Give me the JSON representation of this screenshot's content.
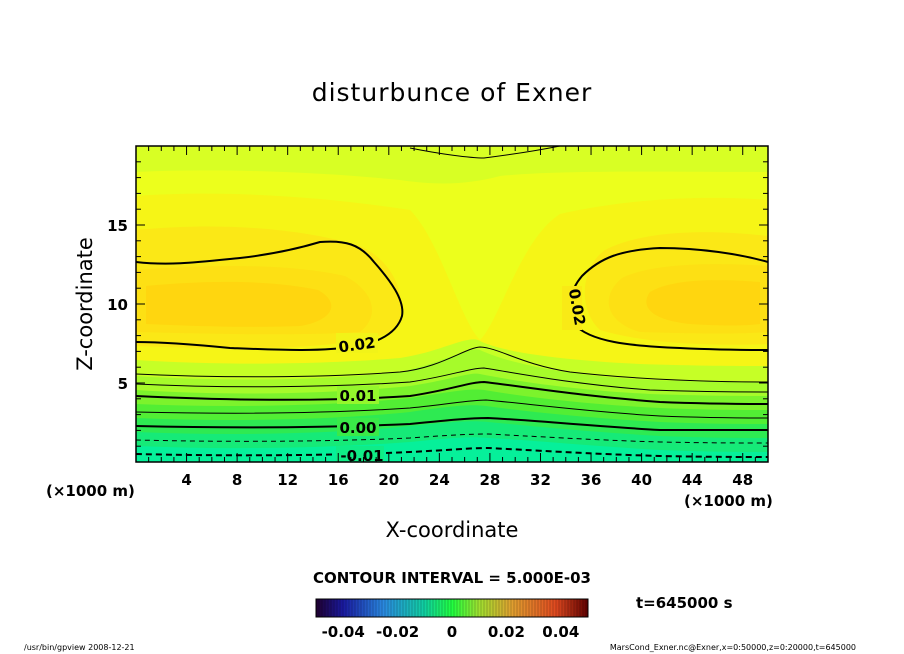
{
  "chart_data": {
    "type": "heatmap",
    "title": "disturbunce of Exner",
    "xlabel": "X-coordinate",
    "ylabel": "Z-coordinate",
    "x_unit": "(×1000 m)",
    "y_unit": "(×1000 m)",
    "xlim": [
      0,
      50
    ],
    "ylim": [
      0,
      20
    ],
    "x_ticks": [
      "4",
      "8",
      "12",
      "16",
      "20",
      "24",
      "28",
      "32",
      "36",
      "40",
      "44",
      "48"
    ],
    "y_ticks": [
      "5",
      "10",
      "15"
    ],
    "contour_interval_text": "CONTOUR INTERVAL = 5.000E-03",
    "contour_labels": [
      "0.02",
      "0.01",
      "0.00",
      "-0.01",
      "0.02"
    ],
    "colorbar": {
      "range": [
        -0.05,
        0.05
      ],
      "tick_labels": [
        "-0.04",
        "-0.02",
        "0",
        "0.02",
        "0.04"
      ]
    },
    "time_label": "t=645000  s",
    "footer_left": "/usr/bin/gpview   2008-12-21",
    "footer_right": "MarsCond_Exner.nc@Exner,x=0:50000,z=0:20000,t=645000",
    "colors": {
      "fill_high": "#ffd60f",
      "fill_mid": "#e6ff1a",
      "fill_low": "#00ff9a"
    }
  }
}
